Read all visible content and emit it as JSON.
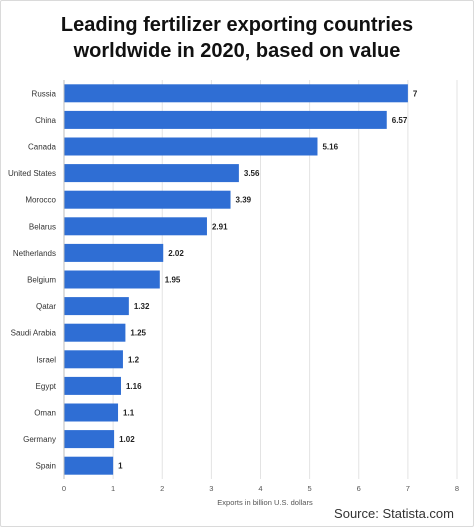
{
  "title_lines": [
    "Leading fertilizer exporting countries",
    "worldwide in 2020, based on value"
  ],
  "source": "Source: Statista.com",
  "colors": {
    "bar": "#2f6ed4",
    "grid": "#e3e3e3",
    "axis": "#bdbdbd",
    "label": "#333333",
    "value": "#222222"
  },
  "chart_data": {
    "type": "bar",
    "orientation": "horizontal",
    "title": "Leading fertilizer exporting countries worldwide in 2020, based on value",
    "xlabel": "Exports in billion U.S. dollars",
    "ylabel": "",
    "xlim": [
      0,
      8
    ],
    "xticks": [
      0,
      1,
      2,
      3,
      4,
      5,
      6,
      7,
      8
    ],
    "grid": true,
    "categories": [
      "Russia",
      "China",
      "Canada",
      "United States",
      "Morocco",
      "Belarus",
      "Netherlands",
      "Belgium",
      "Qatar",
      "Saudi Arabia",
      "Israel",
      "Egypt",
      "Oman",
      "Germany",
      "Spain"
    ],
    "values": [
      7,
      6.57,
      5.16,
      3.56,
      3.39,
      2.91,
      2.02,
      1.95,
      1.32,
      1.25,
      1.2,
      1.16,
      1.1,
      1.02,
      1
    ],
    "value_labels": [
      "7",
      "6.57",
      "5.16",
      "3.56",
      "3.39",
      "2.91",
      "2.02",
      "1.95",
      "1.32",
      "1.25",
      "1.2",
      "1.16",
      "1.1",
      "1.02",
      "1"
    ]
  }
}
